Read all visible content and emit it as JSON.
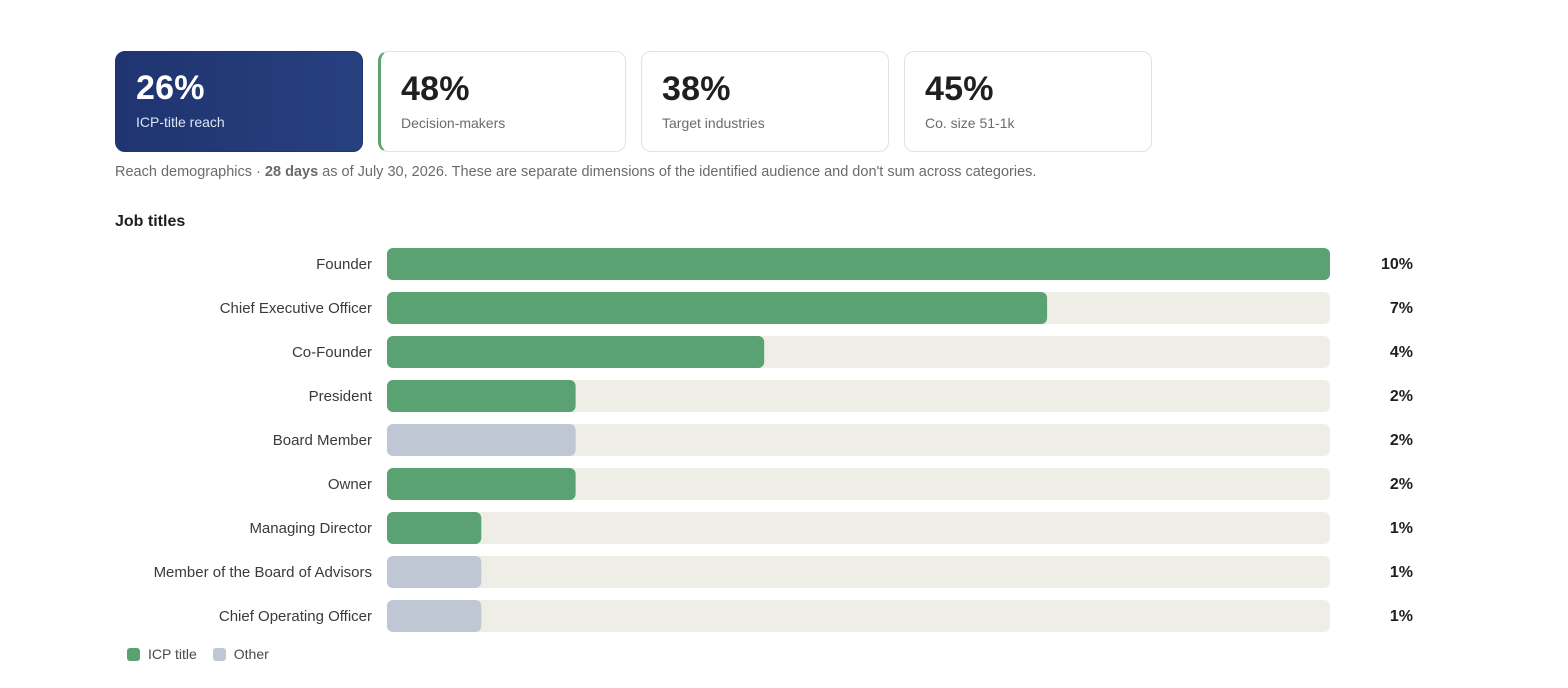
{
  "cards": [
    {
      "value": "26%",
      "label": "ICP-title reach",
      "state": "active"
    },
    {
      "value": "48%",
      "label": "Decision-makers",
      "state": "accent"
    },
    {
      "value": "38%",
      "label": "Target industries",
      "state": "default"
    },
    {
      "value": "45%",
      "label": "Co. size 51-1k",
      "state": "default"
    }
  ],
  "note": {
    "prefix": "Reach demographics · ",
    "period": "28 days",
    "suffix": " as of July 30, 2026. These are separate dimensions of the identified audience and don't sum across categories."
  },
  "section_title": "Job titles",
  "colors": {
    "icp": "#5aa271",
    "other": "#bfc6d4",
    "track": "#efeee6",
    "active_card": "#1f3470"
  },
  "chart_data": {
    "type": "bar",
    "orientation": "horizontal",
    "title": "Job titles",
    "categories": [
      "Founder",
      "Chief Executive Officer",
      "Co-Founder",
      "President",
      "Board Member",
      "Owner",
      "Managing Director",
      "Member of the Board of Advisors",
      "Chief Operating Officer"
    ],
    "values": [
      10,
      7,
      4,
      2,
      2,
      2,
      1,
      1,
      1
    ],
    "value_labels": [
      "10%",
      "7%",
      "4%",
      "2%",
      "2%",
      "2%",
      "1%",
      "1%",
      "1%"
    ],
    "groups": [
      "ICP title",
      "ICP title",
      "ICP title",
      "ICP title",
      "Other",
      "ICP title",
      "ICP title",
      "Other",
      "Other"
    ],
    "xlim": [
      0,
      10
    ],
    "legend": [
      "ICP title",
      "Other"
    ],
    "legend_position": "bottom-left",
    "grid": false
  }
}
